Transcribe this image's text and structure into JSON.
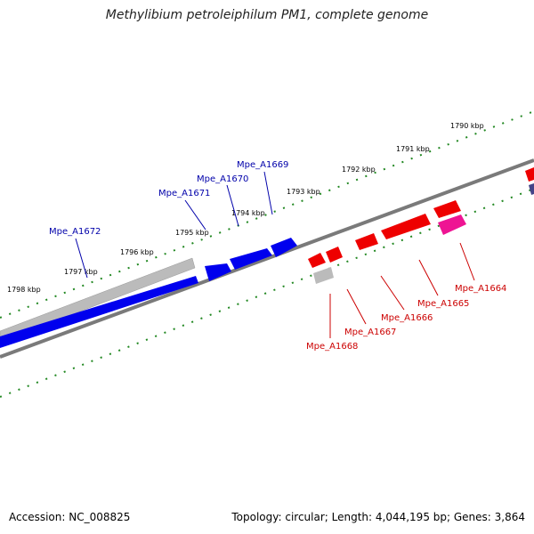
{
  "title": "Methylibium petroleiphilum PM1, complete genome",
  "footer": {
    "accession": "Accession: NC_008825",
    "summary": "Topology: circular; Length: 4,044,195 bp; Genes: 3,864"
  },
  "colors": {
    "forward_gene": "#0000ee",
    "reverse_gene": "#ee0000",
    "reverse_highlight": "#ee1493",
    "rna_or_pseudo": "#bbbbbb",
    "backbone": "#7a7a7a",
    "ticks": "#228822",
    "forward_label": "#0000aa",
    "reverse_label": "#cc0000"
  },
  "scale_labels": [
    "1798 kbp",
    "1797 kbp",
    "1796 kbp",
    "1795 kbp",
    "1794 kbp",
    "1793 kbp",
    "1792 kbp",
    "1791 kbp",
    "1790 kbp"
  ],
  "forward_genes": [
    "Mpe_A1672",
    "Mpe_A1671",
    "Mpe_A1670",
    "Mpe_A1669"
  ],
  "reverse_genes": [
    "Mpe_A1668",
    "Mpe_A1667",
    "Mpe_A1666",
    "Mpe_A1665",
    "Mpe_A1664"
  ]
}
